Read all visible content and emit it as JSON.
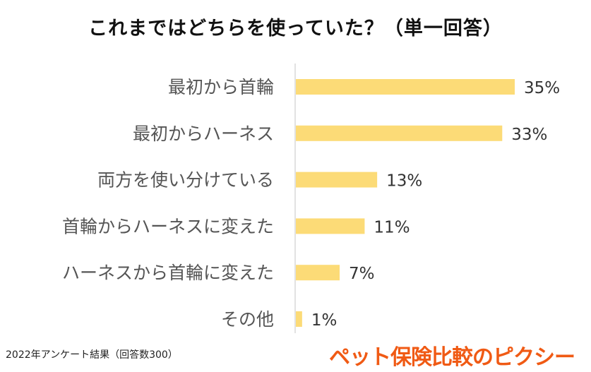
{
  "chart_data": {
    "type": "bar",
    "orientation": "horizontal",
    "title": "これまではどちらを使っていた？（単一回答）",
    "categories": [
      "最初から首輪",
      "最初からハーネス",
      "両方を使い分けている",
      "首輪からハーネスに変えた",
      "ハーネスから首輪に変えた",
      "その他"
    ],
    "values": [
      35,
      33,
      13,
      11,
      7,
      1
    ],
    "value_labels": [
      "35%",
      "33%",
      "13%",
      "11%",
      "7%",
      "1%"
    ],
    "xlabel": "",
    "ylabel": "",
    "xlim": [
      0,
      40
    ],
    "grid": false,
    "bar_color": "#FCDB77"
  },
  "footer": "2022年アンケート結果（回答数300）",
  "logo": "ペット保険比較のピクシー"
}
